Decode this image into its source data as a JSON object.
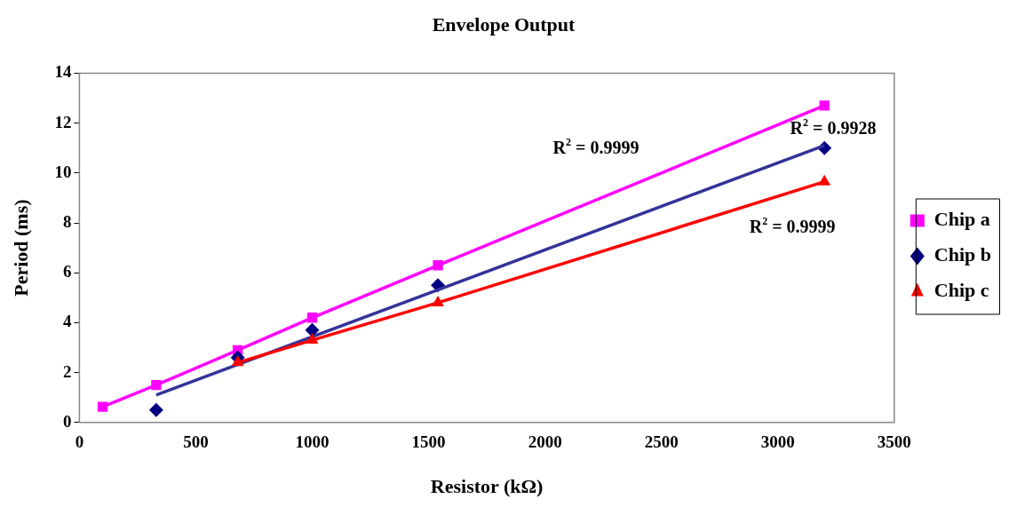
{
  "chart_data": {
    "type": "line",
    "title": "Envelope Output",
    "xlabel": "Resistor (kΩ)",
    "ylabel": "Period (ms)",
    "series": [
      {
        "name": "Chip a",
        "color": "#ff00ff",
        "marker": "square",
        "x": [
          100,
          330,
          680,
          1000,
          1540,
          3200
        ],
        "values": [
          0.63,
          1.5,
          2.9,
          4.2,
          6.3,
          12.7
        ]
      },
      {
        "name": "Chip b",
        "type": "scatter",
        "color": "#000080",
        "marker": "diamond",
        "x": [
          330,
          680,
          1000,
          1540,
          3200
        ],
        "values": [
          0.5,
          2.6,
          3.7,
          5.5,
          11.0
        ]
      },
      {
        "type": "line",
        "color": "#333399",
        "marker": "none",
        "x": [
          330,
          3200
        ],
        "values": [
          1.1,
          11.1
        ]
      },
      {
        "name": "Chip c",
        "color": "#ff0000",
        "marker": "triangle",
        "x": [
          680,
          1000,
          1540,
          3200
        ],
        "values": [
          2.4,
          3.3,
          4.8,
          9.65
        ]
      }
    ],
    "xlim": [
      0,
      3500
    ],
    "xticks": [
      0,
      500,
      1000,
      1500,
      2000,
      2500,
      3000,
      3500
    ],
    "ylim": [
      0,
      14
    ],
    "yticks": [
      0,
      2,
      4,
      6,
      8,
      10,
      12,
      14
    ],
    "grid": false,
    "legend": "right",
    "annotations": [
      "R$^{2}$ = 0.9999",
      "R$^{2}$ = 0.9928",
      "R$^{2}$ = 0.9999"
    ]
  }
}
